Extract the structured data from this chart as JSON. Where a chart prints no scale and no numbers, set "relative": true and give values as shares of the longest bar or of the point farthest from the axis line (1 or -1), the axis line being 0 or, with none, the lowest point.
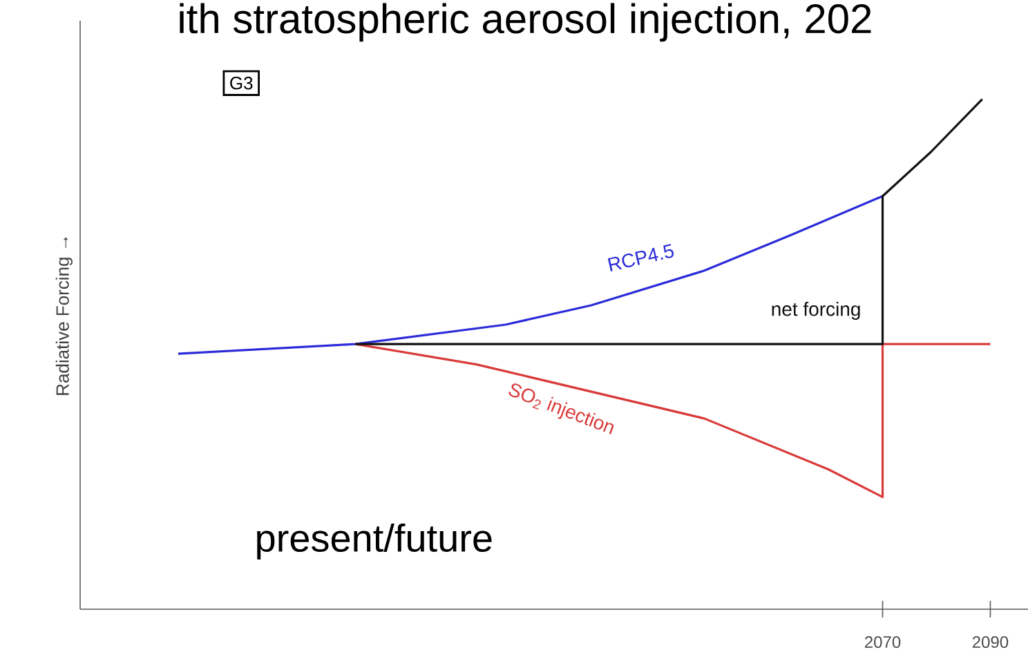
{
  "chart_data": {
    "type": "line",
    "title": "ith stratospheric aerosol injection, 202",
    "ylabel": "Radiative Forcing →",
    "relative": true,
    "xlim": [
      1921,
      2097
    ],
    "xticks": [
      2070,
      2090
    ],
    "annotations": [
      "G3",
      "present/future"
    ],
    "series": [
      {
        "name": "RCP4.5",
        "color": "#2b2bd9",
        "x": [
          1939.2,
          1972.1,
          2000,
          2015.9,
          2036.9,
          2052.6,
          2070
        ],
        "values": [
          0.501,
          0.52,
          0.558,
          0.596,
          0.664,
          0.732,
          0.81
        ]
      },
      {
        "name": "SO$_{2}$ injection",
        "color": "#d93a3a",
        "x": [
          1972.1,
          1994.6,
          2036.9,
          2060,
          2070,
          2070,
          2090
        ],
        "values": [
          0.52,
          0.48,
          0.374,
          0.274,
          0.22,
          0.52,
          0.52
        ]
      },
      {
        "name": "net forcing",
        "color": "#111111",
        "x": [
          1972.1,
          2070,
          2070,
          2079,
          2088.5
        ],
        "values": [
          0.52,
          0.52,
          0.81,
          0.897,
          1.0
        ]
      }
    ]
  }
}
